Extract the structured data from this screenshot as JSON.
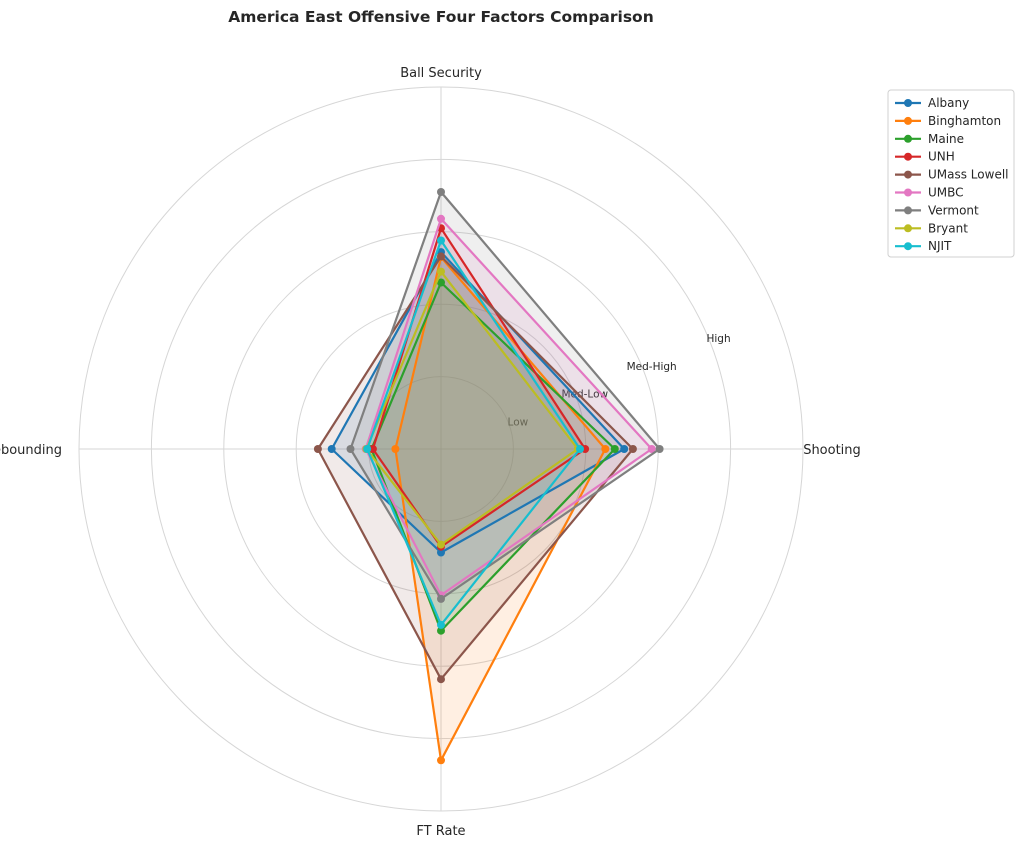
{
  "chart_data": {
    "type": "radar",
    "title": "America East Offensive Four Factors Comparison",
    "axes": [
      "Ball Security",
      "Shooting",
      "FT Rate",
      "Off Rebounding"
    ],
    "rlim": [
      0,
      5
    ],
    "ring_values": [
      1,
      2,
      3,
      4,
      5
    ],
    "ring_labels": [
      {
        "value": 1,
        "label": "Low"
      },
      {
        "value": 2,
        "label": "Med-Low"
      },
      {
        "value": 3,
        "label": "Med-High"
      },
      {
        "value": 4,
        "label": "High"
      }
    ],
    "grid": true,
    "legend_position": "top-right",
    "series": [
      {
        "name": "Albany",
        "color": "#1f77b4",
        "values": [
          2.72,
          2.53,
          1.43,
          1.51
        ]
      },
      {
        "name": "Binghamton",
        "color": "#ff7f0e",
        "values": [
          2.65,
          2.27,
          4.3,
          0.63
        ]
      },
      {
        "name": "Maine",
        "color": "#2ca02c",
        "values": [
          2.3,
          2.4,
          2.51,
          0.96
        ]
      },
      {
        "name": "UNH",
        "color": "#d62728",
        "values": [
          3.05,
          1.99,
          1.35,
          0.94
        ]
      },
      {
        "name": "UMass Lowell",
        "color": "#8c564b",
        "values": [
          2.66,
          2.65,
          3.18,
          1.7
        ]
      },
      {
        "name": "UMBC",
        "color": "#e377c2",
        "values": [
          3.18,
          2.91,
          2.02,
          1.04
        ]
      },
      {
        "name": "Vermont",
        "color": "#7f7f7f",
        "values": [
          3.55,
          3.02,
          2.07,
          1.25
        ]
      },
      {
        "name": "Bryant",
        "color": "#bcbd22",
        "values": [
          2.45,
          1.89,
          1.32,
          1.03
        ]
      },
      {
        "name": "NJIT",
        "color": "#17becf",
        "values": [
          2.88,
          1.92,
          2.43,
          1.02
        ]
      }
    ]
  }
}
